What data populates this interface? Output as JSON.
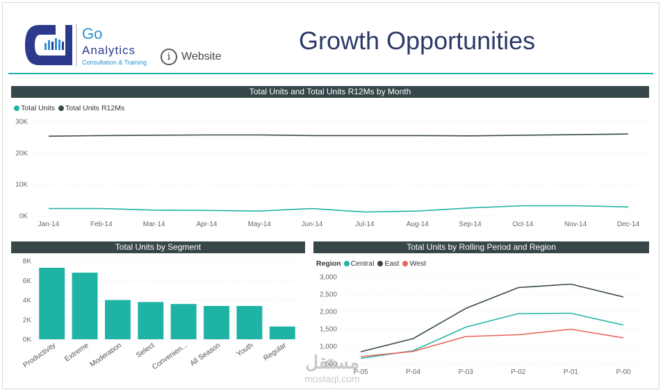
{
  "header": {
    "logo_go": "Go",
    "logo_analytics": "Analytics",
    "logo_tagline": "Consultation & Training",
    "info_icon_glyph": "i",
    "website_label": "Website",
    "page_title": "Growth Opportunities"
  },
  "colors": {
    "teal": "#1fb3a6",
    "dark": "#374649",
    "red": "#e8635a",
    "navy": "#2b3a67",
    "logo_blue": "#2a8fd0"
  },
  "watermark": {
    "arabic": "مستقل",
    "latin": "mostaql.com"
  },
  "chart_data": [
    {
      "id": "month_chart",
      "type": "line",
      "title": "Total Units and Total Units R12Ms by Month",
      "categories": [
        "Jan-14",
        "Feb-14",
        "Mar-14",
        "Apr-14",
        "May-14",
        "Jun-14",
        "Jul-14",
        "Aug-14",
        "Sep-14",
        "Oct-14",
        "Nov-14",
        "Dec-14"
      ],
      "series": [
        {
          "name": "Total Units",
          "color": "#1fb3a6",
          "values": [
            2300,
            2300,
            1800,
            1700,
            1500,
            2300,
            1200,
            1500,
            2500,
            3200,
            3200,
            2800
          ]
        },
        {
          "name": "Total Units R12Ms",
          "color": "#374649",
          "values": [
            25300,
            25500,
            25600,
            25700,
            25700,
            25500,
            25500,
            25500,
            25400,
            25600,
            25800,
            26000
          ]
        }
      ],
      "ylim": [
        0,
        30000
      ],
      "yticks": [
        0,
        10000,
        20000,
        30000
      ],
      "ytick_labels": [
        "0K",
        "10K",
        "20K",
        "30K"
      ],
      "legend_position": "top-left"
    },
    {
      "id": "segment_chart",
      "type": "bar",
      "title": "Total Units by Segment",
      "categories": [
        "Productivity",
        "Extreme",
        "Moderation",
        "Select",
        "Convenien...",
        "All Season",
        "Youth",
        "Regular"
      ],
      "values": [
        7300,
        6800,
        4000,
        3800,
        3600,
        3400,
        3400,
        1300
      ],
      "color": "#1fb3a6",
      "ylim": [
        0,
        8000
      ],
      "yticks": [
        0,
        2000,
        4000,
        6000,
        8000
      ],
      "ytick_labels": [
        "0K",
        "2K",
        "4K",
        "6K",
        "8K"
      ]
    },
    {
      "id": "region_chart",
      "type": "line",
      "title": "Total Units by Rolling Period and Region",
      "legend_title": "Region",
      "categories": [
        "P-05",
        "P-04",
        "P-03",
        "P-02",
        "P-01",
        "P-00"
      ],
      "series": [
        {
          "name": "Central",
          "color": "#1fb3a6",
          "values": [
            650,
            870,
            1550,
            1940,
            1950,
            1610
          ]
        },
        {
          "name": "East",
          "color": "#374649",
          "values": [
            840,
            1220,
            2090,
            2690,
            2790,
            2420
          ]
        },
        {
          "name": "West",
          "color": "#e8635a",
          "values": [
            700,
            850,
            1280,
            1330,
            1490,
            1240
          ]
        }
      ],
      "ylim": [
        500,
        3000
      ],
      "yticks": [
        500,
        1000,
        1500,
        2000,
        2500,
        3000
      ],
      "ytick_labels": [
        "500",
        "1,000",
        "1,500",
        "2,000",
        "2,500",
        "3,000"
      ],
      "legend_position": "top-left"
    }
  ]
}
